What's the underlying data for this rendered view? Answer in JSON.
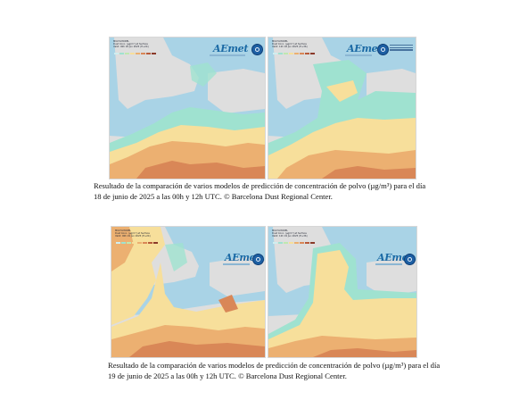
{
  "colors": {
    "ocean": "#a9d3e6",
    "land": "#dedede",
    "dust_low": "#9fe2d0",
    "dust_mid": "#f7df9b",
    "dust_high": "#ecb071",
    "dust_very_high": "#d98757",
    "aemet_blue": "#1b6aa5"
  },
  "legend_colors": [
    "#cfeef0",
    "#9fe2d0",
    "#bfe8b0",
    "#f7df9b",
    "#ecb071",
    "#d98757",
    "#b85a3a",
    "#8b3a2a"
  ],
  "logo_icon": "wmo-globe-icon",
  "figures": [
    {
      "panels": [
        {
          "header": [
            "MULTI-MODEL",
            "Dust Conc. (µg/m³) at Surface",
            "Valid: 00h 18 Jun 2025 (H+24)"
          ],
          "logo": "AEmet"
        },
        {
          "header": [
            "MULTI-MODEL",
            "Dust Conc. (µg/m³) at Surface",
            "Valid: 12h 18 Jun 2025 (H+36)"
          ],
          "logo": "AEmet"
        }
      ],
      "caption_line1": "Resultado de la comparación de varios modelos de predicción de concentración de polvo (µg/m³) para el día",
      "caption_line2": "18 de junio de 2025 a las 00h y 12h UTC. © Barcelona Dust Regional Center."
    },
    {
      "panels": [
        {
          "header": [
            "MULTI-MODEL",
            "Dust Conc. (µg/m³) at Surface",
            "Valid: 00h 19 Jun 2025 (H+24)"
          ],
          "logo": "AEmet"
        },
        {
          "header": [
            "MULTI-MODEL",
            "Dust Conc. (µg/m³) at Surface",
            "Valid: 12h 19 Jun 2025 (H+36)"
          ],
          "logo": "AEmet"
        }
      ],
      "caption_line1": "Resultado de la comparación de varios modelos de predicción de concentración de polvo (µg/m³) para el día",
      "caption_line2": "19 de junio de 2025 a las 00h y 12h UTC. © Barcelona Dust Regional Center."
    }
  ]
}
